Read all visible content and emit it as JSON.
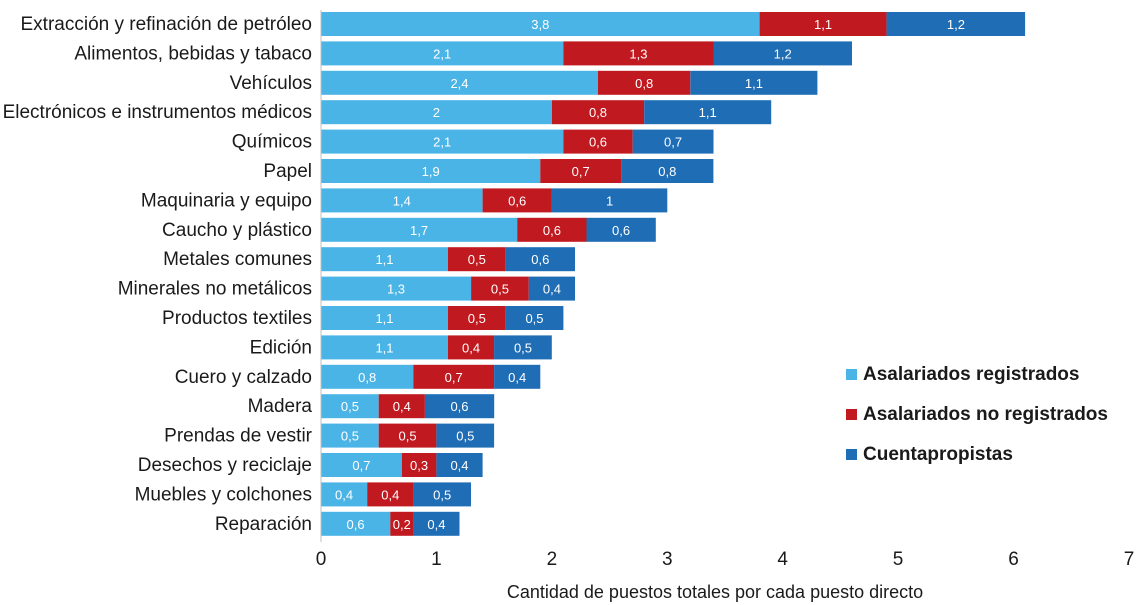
{
  "chart_data": {
    "type": "bar",
    "orientation": "horizontal",
    "stacked": true,
    "categories": [
      "Extracción y refinación de petróleo",
      "Alimentos, bebidas y tabaco",
      "Vehículos",
      "Electrónicos e instrumentos médicos",
      "Químicos",
      "Papel",
      "Maquinaria y equipo",
      "Caucho y plástico",
      "Metales comunes",
      "Minerales no metálicos",
      "Productos textiles",
      "Edición",
      "Cuero y calzado",
      "Madera",
      "Prendas de vestir",
      "Desechos y reciclaje",
      "Muebles y colchones",
      "Reparación"
    ],
    "series": [
      {
        "name": "Asalariados registrados",
        "color": "#4BB4E6",
        "values": [
          3.8,
          2.1,
          2.4,
          2,
          2.1,
          1.9,
          1.4,
          1.7,
          1.1,
          1.3,
          1.1,
          1.1,
          0.8,
          0.5,
          0.5,
          0.7,
          0.4,
          0.6
        ],
        "labels": [
          "3,8",
          "2,1",
          "2,4",
          "2",
          "2,1",
          "1,9",
          "1,4",
          "1,7",
          "1,1",
          "1,3",
          "1,1",
          "1,1",
          "0,8",
          "0,5",
          "0,5",
          "0,7",
          "0,4",
          "0,6"
        ]
      },
      {
        "name": "Asalariados no registrados",
        "color": "#C0191F",
        "values": [
          1.1,
          1.3,
          0.8,
          0.8,
          0.6,
          0.7,
          0.6,
          0.6,
          0.5,
          0.5,
          0.5,
          0.4,
          0.7,
          0.4,
          0.5,
          0.3,
          0.4,
          0.2
        ],
        "labels": [
          "1,1",
          "1,3",
          "0,8",
          "0,8",
          "0,6",
          "0,7",
          "0,6",
          "0,6",
          "0,5",
          "0,5",
          "0,5",
          "0,4",
          "0,7",
          "0,4",
          "0,5",
          "0,3",
          "0,4",
          "0,2"
        ]
      },
      {
        "name": "Cuentapropistas",
        "color": "#1F6DB5",
        "values": [
          1.2,
          1.2,
          1.1,
          1.1,
          0.7,
          0.8,
          1,
          0.6,
          0.6,
          0.4,
          0.5,
          0.5,
          0.4,
          0.6,
          0.5,
          0.4,
          0.5,
          0.4
        ],
        "labels": [
          "1,2",
          "1,2",
          "1,1",
          "1,1",
          "0,7",
          "0,8",
          "1",
          "0,6",
          "0,6",
          "0,4",
          "0,5",
          "0,5",
          "0,4",
          "0,6",
          "0,5",
          "0,4",
          "0,5",
          "0,4"
        ]
      }
    ],
    "xlim": [
      0,
      7
    ],
    "xticks": [
      "0",
      "1",
      "2",
      "3",
      "4",
      "5",
      "6",
      "7"
    ],
    "xlabel": "Cantidad de puestos totales por cada puesto directo",
    "ylabel": "",
    "title": "",
    "grid": false,
    "legend_position": "right"
  }
}
